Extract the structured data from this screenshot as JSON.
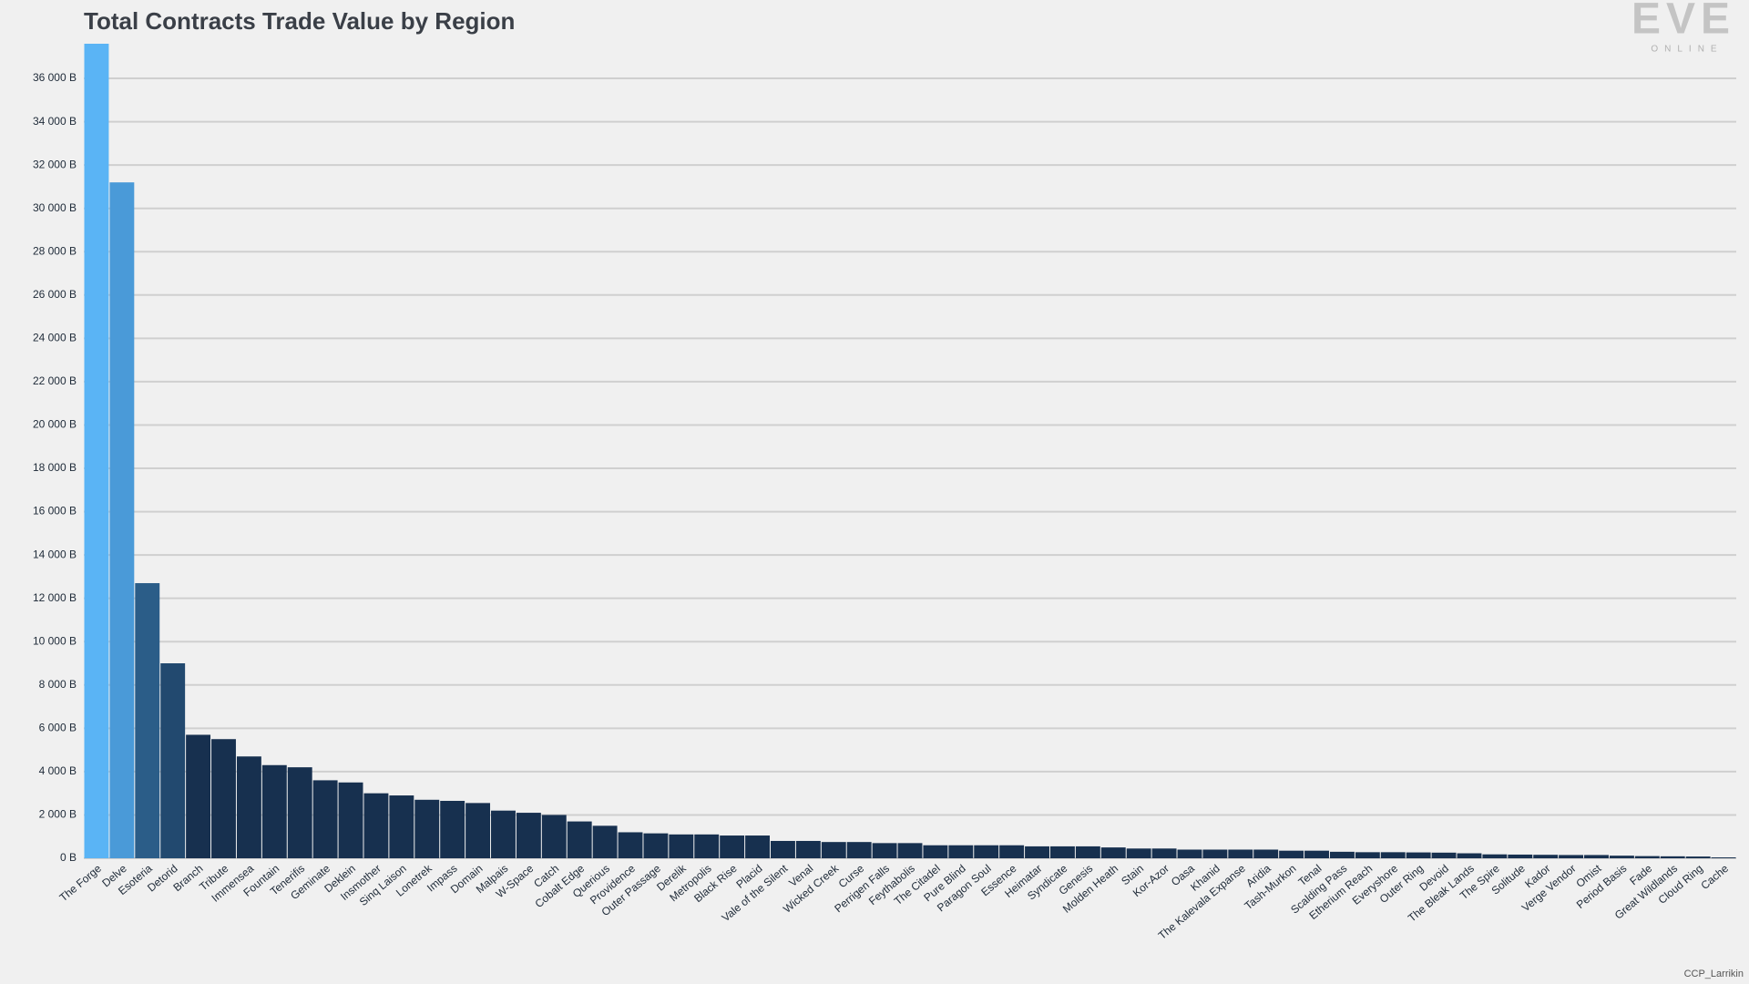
{
  "chart_data": {
    "type": "bar",
    "title": "Total Contracts Trade Value by Region",
    "categories": [
      "The Forge",
      "Delve",
      "Esoteria",
      "Detorid",
      "Branch",
      "Tribute",
      "Immensea",
      "Fountain",
      "Tenerifis",
      "Geminate",
      "Deklein",
      "Insmother",
      "Sinq Laison",
      "Lonetrek",
      "Impass",
      "Domain",
      "Malpais",
      "W-Space",
      "Catch",
      "Cobalt Edge",
      "Querious",
      "Providence",
      "Outer Passage",
      "Derelik",
      "Metropolis",
      "Black Rise",
      "Placid",
      "Vale of the Silent",
      "Venal",
      "Wicked Creek",
      "Curse",
      "Perrigen Falls",
      "Feythabolis",
      "The Citadel",
      "Pure Blind",
      "Paragon Soul",
      "Essence",
      "Heimatar",
      "Syndicate",
      "Genesis",
      "Molden Heath",
      "Stain",
      "Kor-Azor",
      "Oasa",
      "Khanid",
      "The Kalevala Expanse",
      "Aridia",
      "Tash-Murkon",
      "Tenal",
      "Scalding Pass",
      "Etherium Reach",
      "Everyshore",
      "Outer Ring",
      "Devoid",
      "The Bleak Lands",
      "The Spire",
      "Solitude",
      "Kador",
      "Verge Vendor",
      "Omist",
      "Period Basis",
      "Fade",
      "Great Wildlands",
      "Cloud Ring",
      "Cache"
    ],
    "values": [
      37600,
      31200,
      12700,
      9000,
      5700,
      5500,
      4700,
      4300,
      4200,
      3600,
      3500,
      3000,
      2900,
      2700,
      2650,
      2550,
      2200,
      2100,
      2000,
      1700,
      1500,
      1200,
      1150,
      1100,
      1100,
      1050,
      1050,
      800,
      800,
      750,
      750,
      700,
      700,
      600,
      600,
      600,
      600,
      550,
      550,
      550,
      500,
      450,
      450,
      400,
      400,
      400,
      400,
      350,
      350,
      300,
      280,
      280,
      270,
      260,
      230,
      180,
      170,
      160,
      150,
      150,
      120,
      100,
      90,
      80,
      40
    ],
    "colors": [
      "#5ab4f5",
      "#4a9ad8",
      "#2b5d88",
      "#22496f"
    ],
    "color": "#17304f",
    "ylim": [
      0,
      37600
    ],
    "yticks": [
      {
        "value": 0,
        "label": "0 B"
      },
      {
        "value": 2000,
        "label": "2 000 B"
      },
      {
        "value": 4000,
        "label": "4 000 B"
      },
      {
        "value": 6000,
        "label": "6 000 B"
      },
      {
        "value": 8000,
        "label": "8 000 B"
      },
      {
        "value": 10000,
        "label": "10 000 B"
      },
      {
        "value": 12000,
        "label": "12 000 B"
      },
      {
        "value": 14000,
        "label": "14 000 B"
      },
      {
        "value": 16000,
        "label": "16 000 B"
      },
      {
        "value": 18000,
        "label": "18 000 B"
      },
      {
        "value": 20000,
        "label": "20 000 B"
      },
      {
        "value": 22000,
        "label": "22 000 B"
      },
      {
        "value": 24000,
        "label": "24 000 B"
      },
      {
        "value": 26000,
        "label": "26 000 B"
      },
      {
        "value": 28000,
        "label": "28 000 B"
      },
      {
        "value": 30000,
        "label": "30 000 B"
      },
      {
        "value": 32000,
        "label": "32 000 B"
      },
      {
        "value": 34000,
        "label": "34 000 B"
      },
      {
        "value": 36000,
        "label": "36 000 B"
      }
    ],
    "grid": true
  },
  "branding": {
    "logo": "EVE",
    "tagline": "ONLINE",
    "credit": "CCP_Larrikin"
  }
}
